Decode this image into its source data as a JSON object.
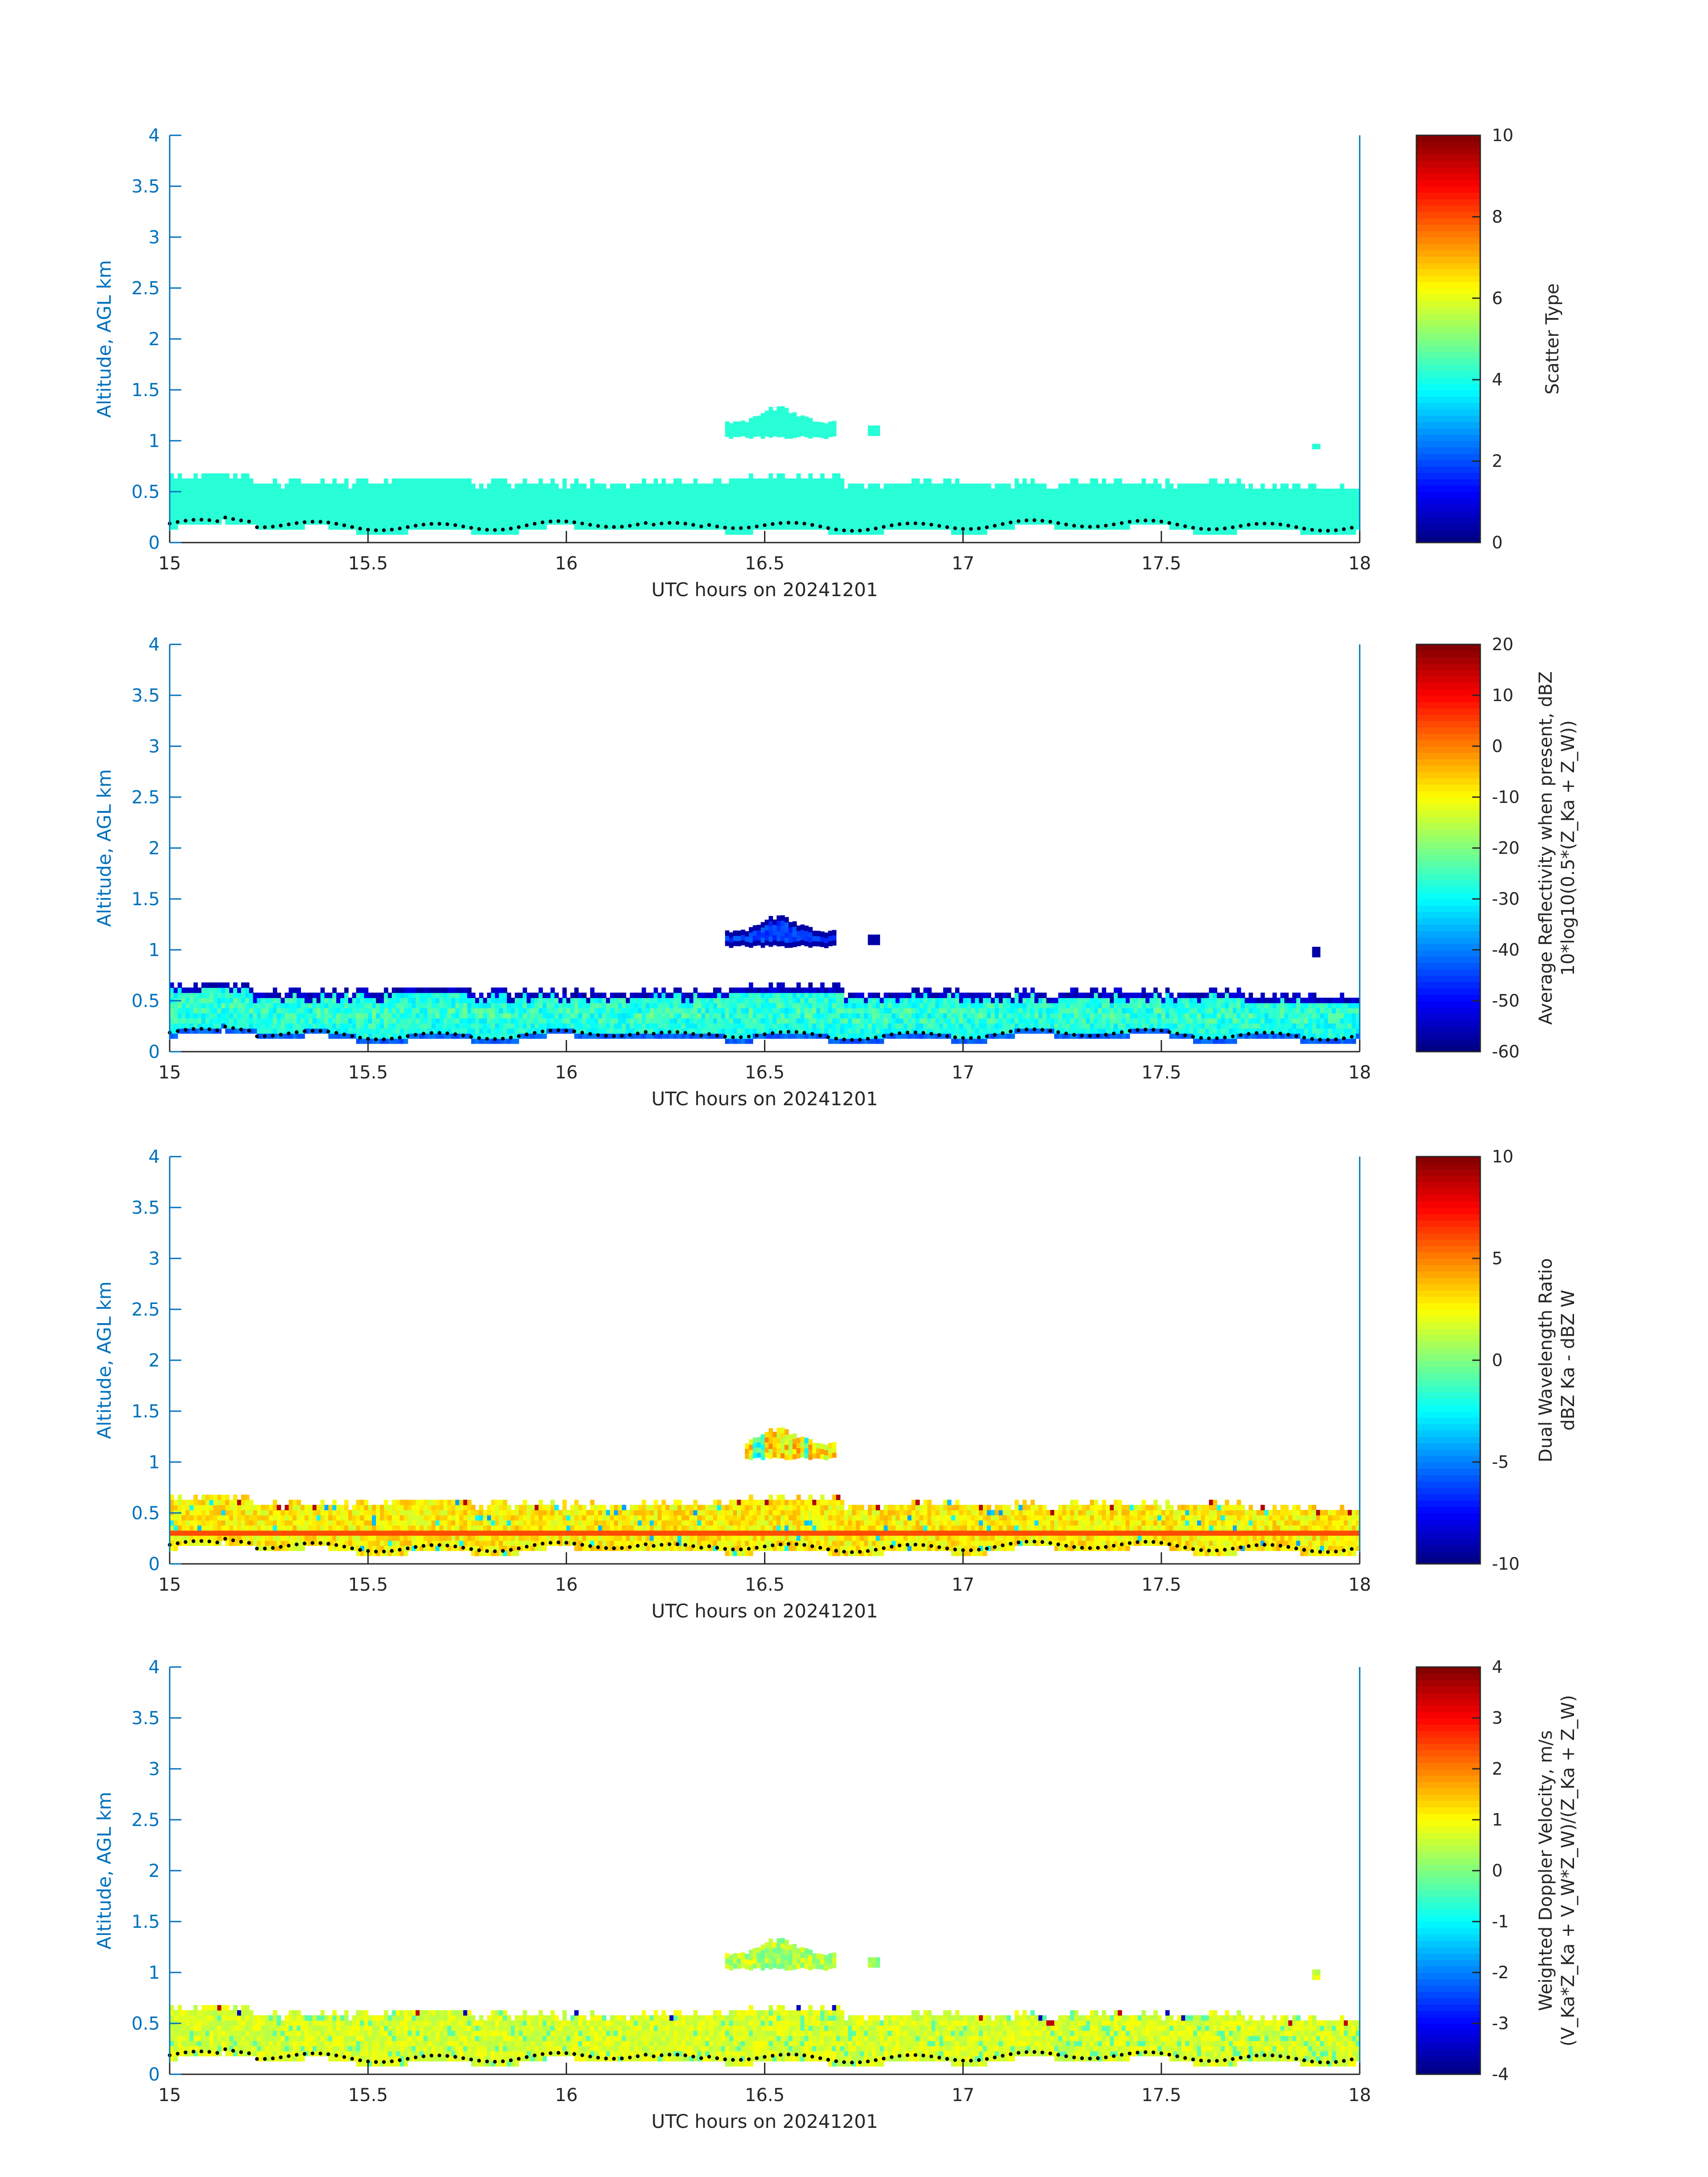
{
  "chart_data": [
    {
      "type": "heatmap",
      "xlabel": "UTC hours on 20241201",
      "ylabel": "Altitude, AGL km",
      "xlim": [
        15,
        18
      ],
      "ylim": [
        0,
        4
      ],
      "xticks": [
        "15",
        "15.5",
        "16",
        "16.5",
        "17",
        "17.5",
        "18"
      ],
      "yticks": [
        "0",
        "0.5",
        "1",
        "1.5",
        "2",
        "2.5",
        "3",
        "3.5",
        "4"
      ],
      "colorbar": {
        "label": "Scatter Type",
        "label2": "",
        "range": [
          0,
          10
        ],
        "ticks": [
          "0",
          "2",
          "4",
          "6",
          "8",
          "10"
        ]
      },
      "field": "scatter_type"
    },
    {
      "type": "heatmap",
      "xlabel": "UTC hours on 20241201",
      "ylabel": "Altitude, AGL km",
      "xlim": [
        15,
        18
      ],
      "ylim": [
        0,
        4
      ],
      "xticks": [
        "15",
        "15.5",
        "16",
        "16.5",
        "17",
        "17.5",
        "18"
      ],
      "yticks": [
        "0",
        "0.5",
        "1",
        "1.5",
        "2",
        "2.5",
        "3",
        "3.5",
        "4"
      ],
      "colorbar": {
        "label": "Average Reflectivity when present, dBZ",
        "label2": "10*log10(0.5*(Z_Ka + Z_W))",
        "range": [
          -60,
          20
        ],
        "ticks": [
          "-60",
          "-50",
          "-40",
          "-30",
          "-20",
          "-10",
          "0",
          "10",
          "20"
        ]
      },
      "field": "reflectivity"
    },
    {
      "type": "heatmap",
      "xlabel": "UTC hours on 20241201",
      "ylabel": "Altitude, AGL km",
      "xlim": [
        15,
        18
      ],
      "ylim": [
        0,
        4
      ],
      "xticks": [
        "15",
        "15.5",
        "16",
        "16.5",
        "17",
        "17.5",
        "18"
      ],
      "yticks": [
        "0",
        "0.5",
        "1",
        "1.5",
        "2",
        "2.5",
        "3",
        "3.5",
        "4"
      ],
      "colorbar": {
        "label": "Dual Wavelength Ratio",
        "label2": "dBZ Ka - dBZ W",
        "range": [
          -10,
          10
        ],
        "ticks": [
          "-10",
          "-5",
          "0",
          "5",
          "10"
        ]
      },
      "field": "dwr"
    },
    {
      "type": "heatmap",
      "xlabel": "UTC hours on 20241201",
      "ylabel": "Altitude, AGL km",
      "xlim": [
        15,
        18
      ],
      "ylim": [
        0,
        4
      ],
      "xticks": [
        "15",
        "15.5",
        "16",
        "16.5",
        "17",
        "17.5",
        "18"
      ],
      "yticks": [
        "0",
        "0.5",
        "1",
        "1.5",
        "2",
        "2.5",
        "3",
        "3.5",
        "4"
      ],
      "colorbar": {
        "label": "Weighted Doppler Velocity, m/s",
        "label2": "(V_Ka*Z_Ka + V_W*Z_W)/(Z_Ka + Z_W)",
        "range": [
          -4,
          4
        ],
        "ticks": [
          "-4",
          "-3",
          "-2",
          "-1",
          "0",
          "1",
          "2",
          "3",
          "4"
        ]
      },
      "field": "velocity"
    }
  ],
  "colors": {
    "axis_y": "#0072bd",
    "axis_x": "#262626",
    "scatter_cyan": "#28ffd7",
    "ground_dots": "#000000"
  },
  "colormap": "jet"
}
